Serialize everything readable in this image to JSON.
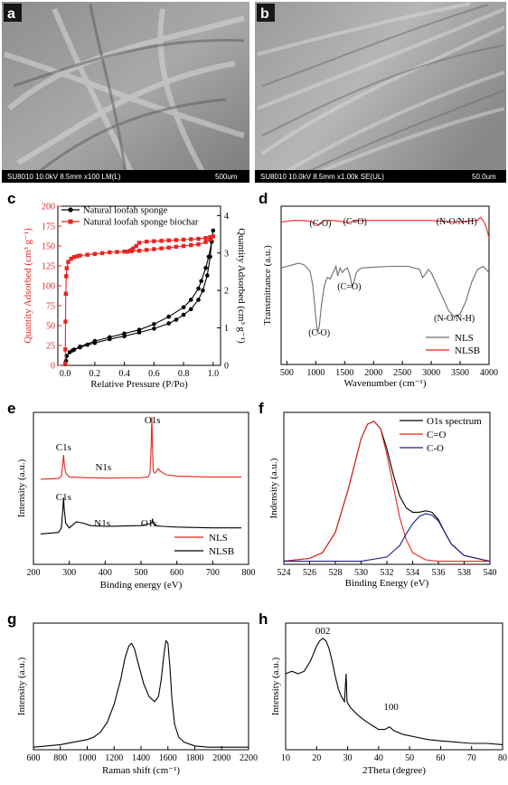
{
  "panels": {
    "a": {
      "label": "a",
      "info": "SU8010 10.0kV 8.5mm x100 LM(L)",
      "scale": "500um"
    },
    "b": {
      "label": "b",
      "info": "SU8010 10.0kV 8.5mm x1.00k SE(UL)",
      "scale": "50.0um"
    },
    "c": {
      "label": "c"
    },
    "d": {
      "label": "d"
    },
    "e": {
      "label": "e"
    },
    "f": {
      "label": "f"
    },
    "g": {
      "label": "g"
    },
    "h": {
      "label": "h"
    }
  },
  "colors": {
    "black": "#000000",
    "red": "#e8241f",
    "blue": "#1c1c8c",
    "gray": "#6e6e6e"
  },
  "chart_data": [
    {
      "id": "c",
      "type": "line",
      "xlabel": "Relative Pressure (P/Po)",
      "ylabel": "Quantity Adsorbed (cm³ g⁻¹)",
      "ylabel2": "Quantity Adsorbed (cm³ g⁻¹)",
      "xlim": [
        -0.05,
        1.05
      ],
      "ylim": [
        0,
        200
      ],
      "y2lim": [
        0,
        4.25
      ],
      "xticks": [
        "0.0",
        "0.2",
        "0.4",
        "0.6",
        "0.8",
        "1.0"
      ],
      "yticks": [
        "0",
        "25",
        "50",
        "75",
        "100",
        "125",
        "150",
        "175",
        "200"
      ],
      "y2ticks": [
        "0",
        "1",
        "2",
        "3",
        "4"
      ],
      "legend_position": "top-left",
      "series": [
        {
          "name": "Natural loofah sponge",
          "axis": "right",
          "marker": "circle",
          "color": "#000000",
          "x": [
            0.0,
            0.005,
            0.01,
            0.03,
            0.06,
            0.1,
            0.15,
            0.2,
            0.3,
            0.4,
            0.5,
            0.6,
            0.7,
            0.75,
            0.8,
            0.85,
            0.9,
            0.93,
            0.96,
            0.98,
            0.99,
            1.0,
            0.99,
            0.97,
            0.95,
            0.92,
            0.9,
            0.85,
            0.8,
            0.7,
            0.6,
            0.5,
            0.4,
            0.3,
            0.2,
            0.1,
            0.05
          ],
          "y": [
            0.03,
            0.12,
            0.25,
            0.35,
            0.42,
            0.48,
            0.55,
            0.6,
            0.7,
            0.78,
            0.88,
            0.98,
            1.12,
            1.22,
            1.35,
            1.5,
            1.75,
            2.0,
            2.4,
            2.9,
            3.3,
            3.6,
            3.3,
            2.9,
            2.6,
            2.25,
            2.05,
            1.75,
            1.55,
            1.3,
            1.1,
            0.95,
            0.85,
            0.75,
            0.65,
            0.5,
            0.4
          ]
        },
        {
          "name": "Natural loofah sponge biochar",
          "axis": "left",
          "marker": "square",
          "color": "#e8241f",
          "x": [
            0.0,
            0.001,
            0.002,
            0.004,
            0.007,
            0.01,
            0.02,
            0.04,
            0.06,
            0.08,
            0.1,
            0.15,
            0.2,
            0.25,
            0.3,
            0.35,
            0.4,
            0.45,
            0.5,
            0.55,
            0.6,
            0.65,
            0.7,
            0.75,
            0.8,
            0.85,
            0.9,
            0.95,
            0.98,
            1.0,
            0.98,
            0.95,
            0.9,
            0.85,
            0.8,
            0.75,
            0.7,
            0.65,
            0.6,
            0.55,
            0.5,
            0.48,
            0.46,
            0.45,
            0.44,
            0.42
          ],
          "y": [
            2,
            20,
            55,
            90,
            112,
            122,
            130,
            134,
            136,
            137,
            138,
            139,
            140,
            141,
            142,
            142.5,
            143,
            143.5,
            144,
            145,
            146,
            147,
            148,
            149,
            150,
            151,
            152,
            155,
            158,
            162,
            161,
            160,
            159,
            158.5,
            158,
            157.5,
            157,
            156.5,
            156,
            155.5,
            154,
            150,
            147,
            145,
            144,
            143
          ]
        }
      ]
    },
    {
      "id": "d",
      "type": "line",
      "xlabel": "Wavenumber (cm⁻¹)",
      "ylabel": "Transmittance (a.u.)",
      "xlim": [
        400,
        4000
      ],
      "ylim": [
        0,
        1
      ],
      "xticks": [
        "500",
        "1000",
        "1500",
        "2000",
        "2500",
        "3000",
        "3500",
        "4000"
      ],
      "legend_position": "bottom-right",
      "annotations": {
        "nlsb": [
          "(C-O)",
          "(C=O)",
          "(N-O/N-H)"
        ],
        "nls": [
          "(C=O)",
          "(C-O)",
          "(N-O/N-H)"
        ]
      },
      "series": [
        {
          "name": "NLS",
          "color": "#6e6e6e",
          "x": [
            400,
            500,
            600,
            700,
            800,
            900,
            950,
            1000,
            1030,
            1060,
            1100,
            1150,
            1200,
            1250,
            1300,
            1350,
            1380,
            1420,
            1460,
            1500,
            1550,
            1600,
            1630,
            1660,
            1700,
            1750,
            1800,
            2000,
            2300,
            2600,
            2800,
            2850,
            2900,
            2950,
            3000,
            3100,
            3200,
            3300,
            3400,
            3500,
            3600,
            3700,
            3800,
            3900,
            3950,
            4000
          ],
          "y": [
            0.61,
            0.62,
            0.63,
            0.64,
            0.63,
            0.59,
            0.5,
            0.3,
            0.2,
            0.24,
            0.38,
            0.5,
            0.55,
            0.54,
            0.58,
            0.62,
            0.56,
            0.61,
            0.58,
            0.6,
            0.61,
            0.55,
            0.49,
            0.52,
            0.58,
            0.6,
            0.61,
            0.615,
            0.62,
            0.62,
            0.6,
            0.55,
            0.57,
            0.6,
            0.58,
            0.5,
            0.42,
            0.34,
            0.3,
            0.32,
            0.4,
            0.52,
            0.6,
            0.62,
            0.6,
            0.58
          ]
        },
        {
          "name": "NLSB",
          "color": "#e8241f",
          "x": [
            400,
            600,
            800,
            900,
            1000,
            1050,
            1100,
            1150,
            1200,
            1300,
            1400,
            1500,
            1550,
            1600,
            1650,
            1700,
            1800,
            2000,
            2500,
            3000,
            3200,
            3400,
            3600,
            3700,
            3800,
            3850,
            3900,
            3950,
            4000
          ],
          "y": [
            0.9,
            0.91,
            0.91,
            0.905,
            0.89,
            0.88,
            0.9,
            0.91,
            0.91,
            0.91,
            0.905,
            0.9,
            0.895,
            0.9,
            0.905,
            0.91,
            0.91,
            0.91,
            0.91,
            0.91,
            0.905,
            0.9,
            0.905,
            0.91,
            0.91,
            0.93,
            0.91,
            0.87,
            0.8
          ]
        }
      ]
    },
    {
      "id": "e",
      "type": "line",
      "xlabel": "Binding energy (eV)",
      "ylabel": "Intensity (a.u.)",
      "xlim": [
        200,
        800
      ],
      "ylim": [
        0,
        1
      ],
      "xticks": [
        "200",
        "300",
        "400",
        "500",
        "600",
        "700",
        "800"
      ],
      "legend_position": "bottom-right",
      "annotations": [
        "O1s",
        "C1s",
        "N1s",
        "C1s",
        "N1s",
        "O1s"
      ],
      "series": [
        {
          "name": "NLS",
          "color": "#e8241f",
          "x": [
            220,
            270,
            278,
            282,
            284,
            286,
            290,
            300,
            350,
            400,
            500,
            520,
            525,
            528,
            530,
            532,
            534,
            538,
            542,
            548,
            555,
            570,
            600,
            700,
            780
          ],
          "y": [
            0.56,
            0.565,
            0.58,
            0.66,
            0.72,
            0.66,
            0.6,
            0.575,
            0.57,
            0.568,
            0.57,
            0.575,
            0.6,
            0.75,
            0.97,
            0.78,
            0.62,
            0.6,
            0.61,
            0.63,
            0.61,
            0.59,
            0.58,
            0.575,
            0.575
          ]
        },
        {
          "name": "NLSB",
          "color": "#000000",
          "x": [
            220,
            270,
            278,
            282,
            284,
            286,
            290,
            300,
            320,
            340,
            360,
            400,
            500,
            520,
            530,
            532,
            534,
            540,
            560,
            600,
            700,
            780
          ],
          "y": [
            0.2,
            0.21,
            0.24,
            0.36,
            0.44,
            0.36,
            0.27,
            0.24,
            0.28,
            0.27,
            0.255,
            0.25,
            0.255,
            0.265,
            0.27,
            0.3,
            0.27,
            0.255,
            0.25,
            0.245,
            0.24,
            0.24
          ]
        }
      ]
    },
    {
      "id": "f",
      "type": "line",
      "xlabel": "Binding Energy (eV)",
      "ylabel": "Indensity (a.u.)",
      "xlim": [
        524,
        540
      ],
      "ylim": [
        0,
        1
      ],
      "xticks": [
        "524",
        "526",
        "528",
        "530",
        "532",
        "534",
        "536",
        "538",
        "540"
      ],
      "legend_position": "top-right",
      "series": [
        {
          "name": "O1s spectrum",
          "color": "#000000",
          "x": [
            524,
            526,
            527,
            528,
            529,
            530,
            530.5,
            531,
            531.5,
            532,
            532.5,
            533,
            533.5,
            534,
            534.5,
            535,
            535.5,
            536,
            536.5,
            537,
            538,
            540
          ],
          "y": [
            0.0,
            0.02,
            0.06,
            0.2,
            0.5,
            0.85,
            0.95,
            0.97,
            0.92,
            0.78,
            0.6,
            0.45,
            0.37,
            0.34,
            0.34,
            0.35,
            0.34,
            0.29,
            0.2,
            0.12,
            0.04,
            0.0
          ]
        },
        {
          "name": "C=O",
          "color": "#e8241f",
          "x": [
            524,
            526,
            527,
            528,
            529,
            530,
            530.5,
            531,
            531.5,
            532,
            532.5,
            533,
            533.5,
            534,
            535,
            536,
            538,
            540
          ],
          "y": [
            0.0,
            0.02,
            0.06,
            0.2,
            0.5,
            0.85,
            0.95,
            0.97,
            0.92,
            0.74,
            0.52,
            0.3,
            0.15,
            0.06,
            0.01,
            0.0,
            0.0,
            0.0
          ]
        },
        {
          "name": "C-O",
          "color": "#1c1c8c",
          "x": [
            524,
            530,
            532,
            533,
            533.5,
            534,
            534.5,
            535,
            535.5,
            536,
            536.5,
            537,
            538,
            540
          ],
          "y": [
            0.0,
            0.0,
            0.03,
            0.11,
            0.19,
            0.26,
            0.31,
            0.33,
            0.32,
            0.28,
            0.2,
            0.12,
            0.04,
            0.0
          ]
        }
      ]
    },
    {
      "id": "g",
      "type": "line",
      "xlabel": "Raman shift (cm⁻¹)",
      "ylabel": "Intensity (a.u.)",
      "xlim": [
        600,
        2200
      ],
      "ylim": [
        0,
        1
      ],
      "xticks": [
        "600",
        "800",
        "1000",
        "1200",
        "1400",
        "1600",
        "1800",
        "2000",
        "2200"
      ],
      "series": [
        {
          "name": "",
          "color": "#000000",
          "x": [
            600,
            700,
            800,
            900,
            1000,
            1050,
            1100,
            1150,
            1200,
            1250,
            1280,
            1310,
            1330,
            1350,
            1380,
            1420,
            1460,
            1500,
            1530,
            1550,
            1570,
            1585,
            1600,
            1615,
            1630,
            1650,
            1680,
            1720,
            1800,
            1900,
            2000,
            2100,
            2200
          ],
          "y": [
            0.02,
            0.03,
            0.04,
            0.06,
            0.08,
            0.1,
            0.14,
            0.22,
            0.36,
            0.56,
            0.72,
            0.82,
            0.84,
            0.8,
            0.68,
            0.52,
            0.42,
            0.38,
            0.42,
            0.55,
            0.75,
            0.86,
            0.84,
            0.65,
            0.4,
            0.2,
            0.1,
            0.06,
            0.03,
            0.02,
            0.02,
            0.02,
            0.02
          ]
        }
      ]
    },
    {
      "id": "h",
      "type": "line",
      "xlabel": "2Theta (degree)",
      "ylabel": "Intensity (a.u.)",
      "xlim": [
        10,
        80
      ],
      "ylim": [
        0,
        1
      ],
      "xticks": [
        "10",
        "20",
        "30",
        "40",
        "50",
        "60",
        "70",
        "80"
      ],
      "annotations": [
        "002",
        "100"
      ],
      "series": [
        {
          "name": "",
          "color": "#000000",
          "x": [
            10,
            12,
            14,
            16,
            18,
            20,
            21,
            22,
            23,
            24,
            25,
            26,
            27,
            28,
            29,
            29.5,
            29.8,
            30.2,
            31,
            33,
            35,
            38,
            40,
            42,
            43.5,
            45,
            48,
            52,
            56,
            60,
            65,
            70,
            75,
            80
          ],
          "y": [
            0.6,
            0.62,
            0.6,
            0.62,
            0.7,
            0.82,
            0.86,
            0.88,
            0.86,
            0.8,
            0.7,
            0.58,
            0.48,
            0.42,
            0.38,
            0.6,
            0.38,
            0.36,
            0.33,
            0.28,
            0.24,
            0.19,
            0.16,
            0.16,
            0.18,
            0.15,
            0.12,
            0.1,
            0.08,
            0.07,
            0.06,
            0.05,
            0.05,
            0.04
          ]
        }
      ]
    }
  ]
}
